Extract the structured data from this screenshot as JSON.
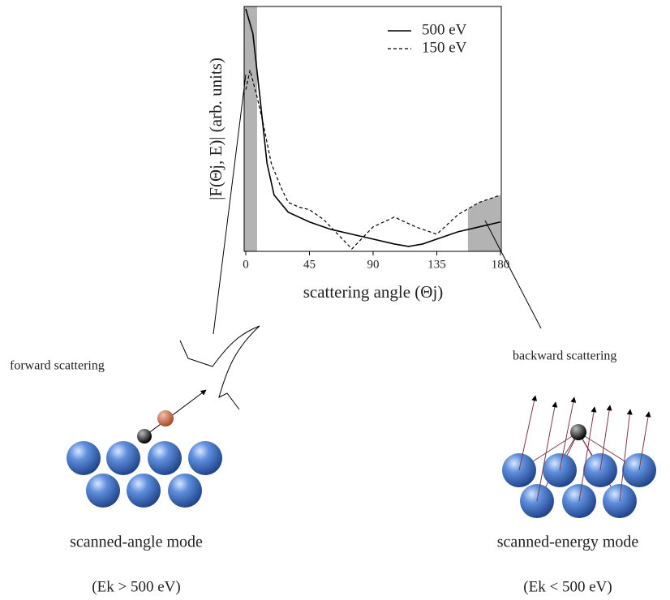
{
  "chart_data": {
    "type": "line",
    "y_label": "|F(Θj, E)| (arb. units)",
    "x_label": "scattering angle (Θj)",
    "xlim": [
      0,
      180
    ],
    "xticks": [
      0,
      45,
      90,
      135,
      180
    ],
    "ylim": [
      0,
      1
    ],
    "legend": "top-right",
    "highlight_ranges": [
      [
        0,
        8
      ],
      [
        157,
        180
      ]
    ],
    "series": [
      {
        "name": "500 eV",
        "color": "#000000",
        "dash": false,
        "x": [
          0,
          5,
          10,
          15,
          20,
          30,
          45,
          60,
          75,
          90,
          105,
          115,
          125,
          135,
          150,
          165,
          180
        ],
        "values": [
          0.99,
          0.89,
          0.63,
          0.36,
          0.23,
          0.16,
          0.12,
          0.09,
          0.07,
          0.05,
          0.03,
          0.02,
          0.03,
          0.05,
          0.08,
          0.1,
          0.12
        ]
      },
      {
        "name": "150 eV",
        "color": "#000000",
        "dash": true,
        "x": [
          0,
          3,
          8,
          12,
          18,
          25,
          30,
          38,
          45,
          55,
          65,
          75,
          90,
          105,
          120,
          135,
          150,
          165,
          180
        ],
        "values": [
          0.66,
          0.74,
          0.63,
          0.53,
          0.36,
          0.26,
          0.2,
          0.18,
          0.17,
          0.13,
          0.07,
          0.01,
          0.1,
          0.14,
          0.1,
          0.07,
          0.15,
          0.2,
          0.23
        ]
      }
    ]
  },
  "labels": {
    "forward": "forward scattering",
    "backward": "backward scattering",
    "left_mode": "scanned-angle mode",
    "left_energy": "(Ek > 500 eV)",
    "right_mode": "scanned-energy mode",
    "right_energy": "(Ek < 500 eV)"
  }
}
